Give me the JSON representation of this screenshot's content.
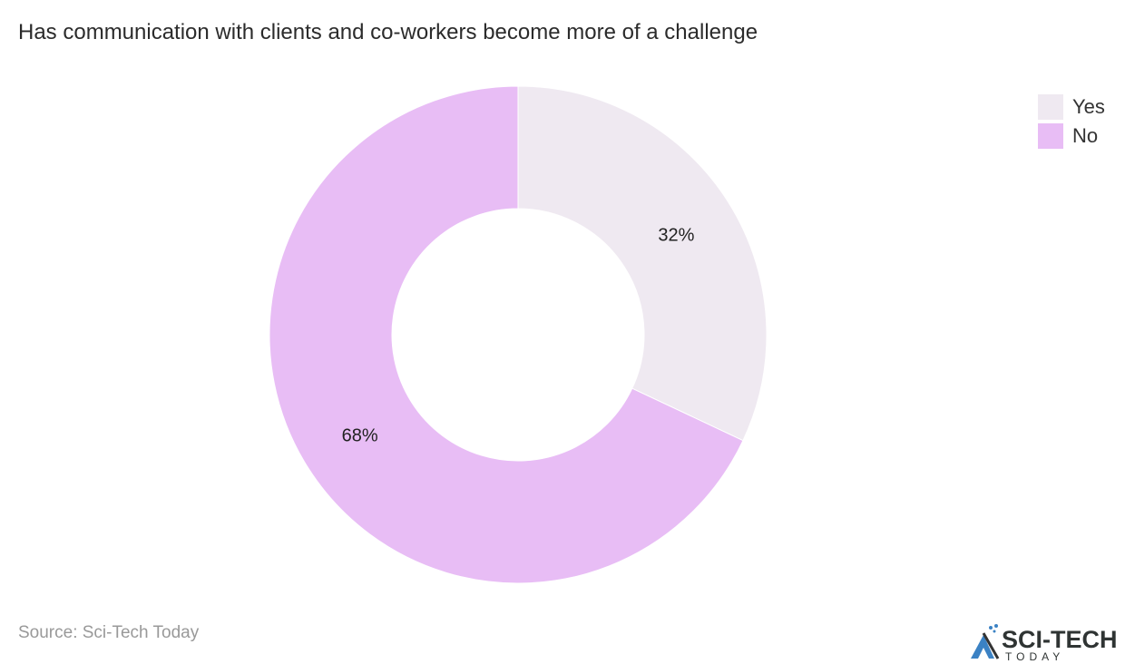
{
  "chart_data": {
    "type": "pie",
    "variant": "donut",
    "title": "Has communication with clients and co-workers become more of a challenge",
    "categories": [
      "Yes",
      "No"
    ],
    "values": [
      32,
      68
    ],
    "data_labels": [
      "32%",
      "68%"
    ],
    "colors": [
      "#efe9f1",
      "#e8bdf5"
    ],
    "legend_position": "top-right"
  },
  "source": "Source: Sci-Tech Today",
  "logo": {
    "text": "SCI-TECH",
    "subtext": "TODAY"
  }
}
